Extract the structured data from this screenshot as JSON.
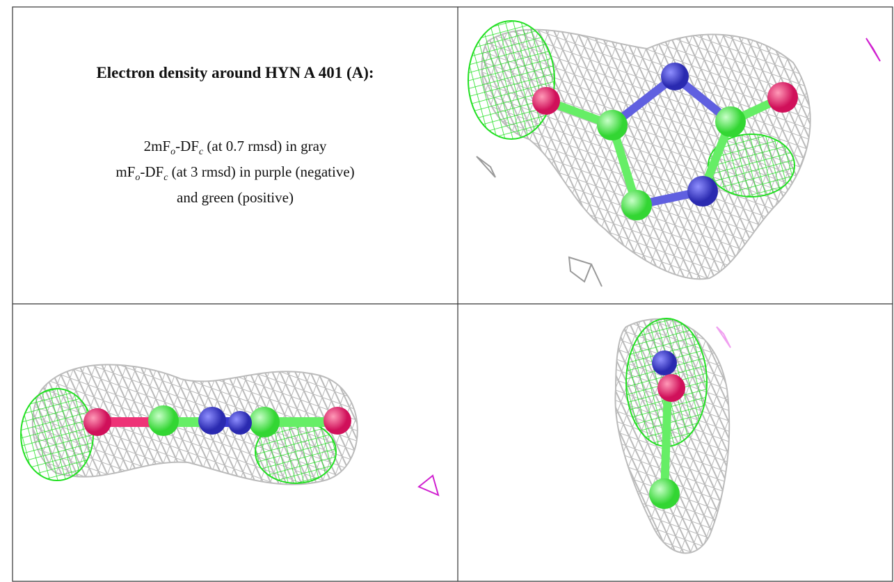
{
  "caption": {
    "title": "Electron density around HYN A 401 (A):",
    "lines": [
      [
        "2mF",
        "o",
        "-DF",
        "c",
        " (at 0.7 rmsd) in gray"
      ],
      [
        "mF",
        "o",
        "-DF",
        "c",
        " (at 3 rmsd) in purple (negative)"
      ],
      [
        "and green (positive)"
      ]
    ]
  }
}
